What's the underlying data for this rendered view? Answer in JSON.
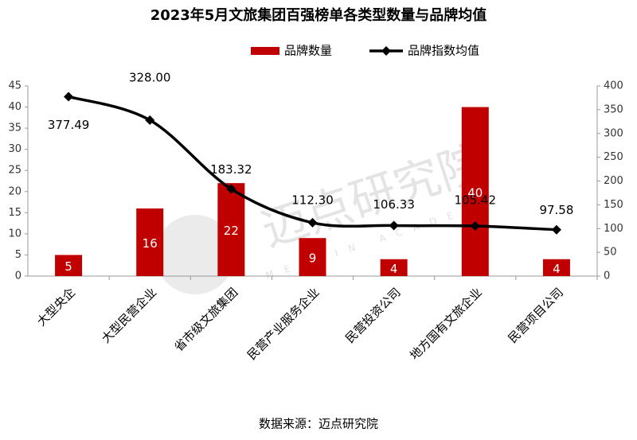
{
  "chart_data": {
    "type": "bar-line",
    "title": "2023年5月文旅集团百强榜单各类型数量与品牌均值",
    "source": "数据来源：迈点研究院",
    "watermark": "迈点研究院",
    "watermark_sub": "MEADIN ACADEMY",
    "categories": [
      "大型央企",
      "大型民营企业",
      "省市级文旅集团",
      "民营产业服务企业",
      "民营投资公司",
      "地方国有文旅企业",
      "民营项目公司"
    ],
    "series": [
      {
        "name": "品牌数量",
        "type": "bar",
        "color": "#c00000",
        "values": [
          5,
          16,
          22,
          9,
          4,
          40,
          4
        ]
      },
      {
        "name": "品牌指数均值",
        "type": "line",
        "axis": "y2",
        "color": "#000000",
        "values": [
          377.49,
          328.0,
          183.32,
          112.3,
          106.33,
          105.42,
          97.58
        ],
        "value_labels": [
          "377.49",
          "328.00",
          "183.32",
          "112.30",
          "106.33",
          "105.42",
          "97.58"
        ]
      }
    ],
    "ylim": [
      0,
      45
    ],
    "yticks": [
      0,
      5,
      10,
      15,
      20,
      25,
      30,
      35,
      40,
      45
    ],
    "y2lim": [
      0,
      400
    ],
    "y2ticks": [
      0,
      50,
      100,
      150,
      200,
      250,
      300,
      350,
      400
    ],
    "legend": "top"
  }
}
